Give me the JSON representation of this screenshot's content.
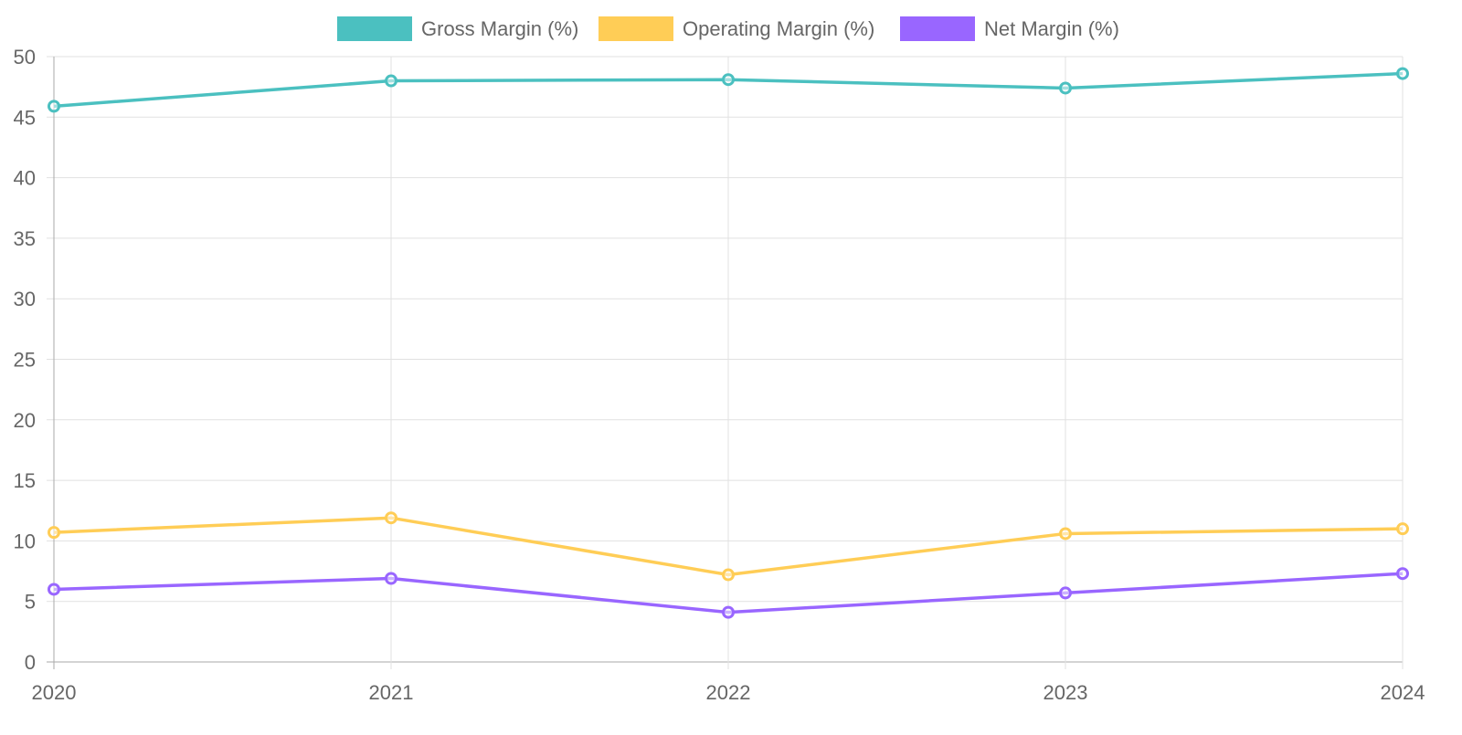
{
  "chart_data": {
    "type": "line",
    "title": "",
    "xlabel": "",
    "ylabel": "",
    "categories": [
      "2020",
      "2021",
      "2022",
      "2023",
      "2024"
    ],
    "ylim": [
      0,
      50
    ],
    "yticks": [
      "0",
      "5",
      "10",
      "15",
      "20",
      "25",
      "30",
      "35",
      "40",
      "45",
      "50"
    ],
    "grid": true,
    "legend_position": "top",
    "series": [
      {
        "name": "Gross Margin (%)",
        "color": "#4BC0C0",
        "values": [
          45.9,
          48.0,
          48.1,
          47.4,
          48.6
        ]
      },
      {
        "name": "Operating Margin (%)",
        "color": "#FFCD56",
        "values": [
          10.7,
          11.9,
          7.2,
          10.6,
          11.0
        ]
      },
      {
        "name": "Net Margin (%)",
        "color": "#9966FF",
        "values": [
          6.0,
          6.9,
          4.1,
          5.7,
          7.3
        ]
      }
    ]
  }
}
